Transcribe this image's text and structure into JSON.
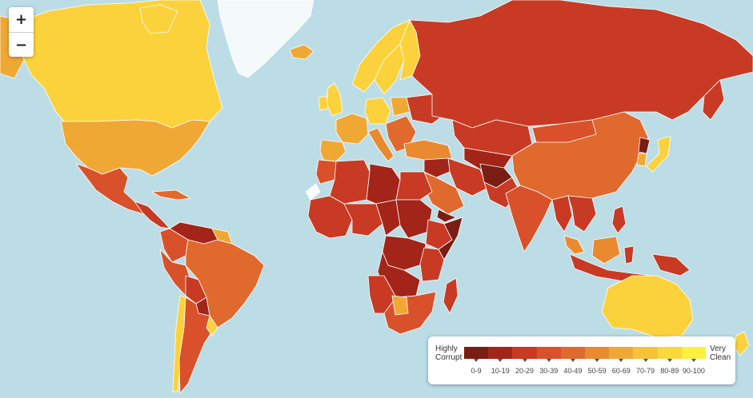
{
  "map": {
    "ocean_color": "#bcdde6",
    "border_color": "#ffffff",
    "no_data_color": "#ffffff"
  },
  "zoom": {
    "in_label": "+",
    "out_label": "−"
  },
  "legend": {
    "left_label_line1": "Highly",
    "left_label_line2": "Corrupt",
    "right_label_line1": "Very",
    "right_label_line2": "Clean",
    "bins": [
      {
        "label": "0-9",
        "color": "#7a1e14"
      },
      {
        "label": "10-19",
        "color": "#a32418"
      },
      {
        "label": "20-29",
        "color": "#c83a24"
      },
      {
        "label": "30-39",
        "color": "#d9512a"
      },
      {
        "label": "40-49",
        "color": "#e0692e"
      },
      {
        "label": "50-59",
        "color": "#e98a30"
      },
      {
        "label": "60-69",
        "color": "#f0a834"
      },
      {
        "label": "70-79",
        "color": "#f6c338"
      },
      {
        "label": "80-89",
        "color": "#fad83c"
      },
      {
        "label": "90-100",
        "color": "#fff040"
      }
    ]
  }
}
